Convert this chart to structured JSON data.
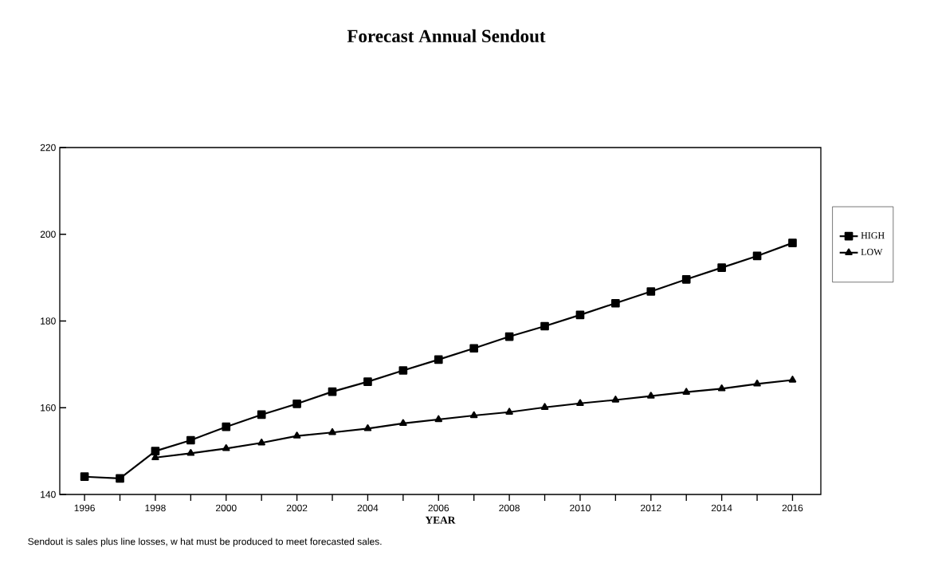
{
  "chart_data": {
    "type": "line",
    "title": "Forecast Annual Sendout",
    "xlabel": "YEAR",
    "annotations": [
      "Sendout is sales plus line losses, w hat must be produced to meet forecasted sales."
    ],
    "x": [
      1996,
      1997,
      1998,
      1999,
      2000,
      2001,
      2002,
      2003,
      2004,
      2005,
      2006,
      2007,
      2008,
      2009,
      2010,
      2011,
      2012,
      2013,
      2014,
      2015,
      2016
    ],
    "series": [
      {
        "name": "HIGH",
        "color": "#000000",
        "marker": "square",
        "values": [
          144.1,
          143.7,
          150,
          152.5,
          155.6,
          158.4,
          160.9,
          163.7,
          166,
          168.6,
          171.1,
          173.7,
          176.4,
          178.8,
          181.4,
          184.1,
          186.8,
          189.6,
          192.3,
          195,
          198
        ]
      },
      {
        "name": "LOW",
        "color": "#000000",
        "marker": "triangle",
        "values": [
          null,
          null,
          148.5,
          149.5,
          150.6,
          151.9,
          153.5,
          154.3,
          155.2,
          156.4,
          157.3,
          158.2,
          159,
          160.1,
          161,
          161.8,
          162.7,
          163.6,
          164.4,
          165.5,
          166.4
        ]
      }
    ],
    "xlim": [
      1995.3,
      2016.8
    ],
    "xticks": [
      1996,
      {
        "value": 1997,
        "label": null
      },
      1998,
      {
        "value": 1999,
        "label": null
      },
      2000,
      {
        "value": 2001,
        "label": null
      },
      2002,
      {
        "value": 2003,
        "label": null
      },
      2004,
      {
        "value": 2005,
        "label": null
      },
      2006,
      {
        "value": 2007,
        "label": null
      },
      2008,
      {
        "value": 2009,
        "label": null
      },
      2010,
      {
        "value": 2011,
        "label": null
      },
      2012,
      {
        "value": 2013,
        "label": null
      },
      2014,
      {
        "value": 2015,
        "label": null
      },
      2016
    ],
    "ylim": [
      140,
      220
    ],
    "yticks": [
      140,
      160,
      180,
      200,
      220
    ],
    "grid": false,
    "legend": "right",
    "line_style": "solid"
  }
}
